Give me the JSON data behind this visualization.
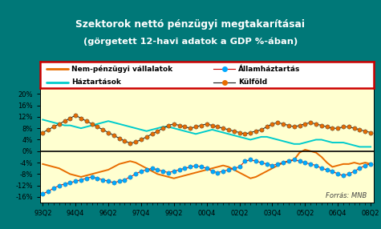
{
  "title_line1": "Szektorok nettó pénzügyi megtakarításai",
  "title_line2": "(görgetett 12-havi adatok a GDP %-ában)",
  "background_outer": "#007878",
  "background_inner": "#ffffd0",
  "legend_labels": [
    "Nem-pénzügyi vállalatok",
    "Államháztartás",
    "Háztartások",
    "Külföld"
  ],
  "yticks": [
    -16,
    -12,
    -8,
    -4,
    0,
    4,
    8,
    12,
    16,
    20
  ],
  "ytick_labels": [
    "-16%",
    "-12%",
    "-8%",
    "-4%",
    "0%",
    "4%",
    "8%",
    "12%",
    "16%",
    "20%"
  ],
  "xtick_labels": [
    "93Q2",
    "94Q4",
    "96Q2",
    "97Q4",
    "99Q2",
    "00Q4",
    "02Q2",
    "03Q4",
    "05Q2",
    "06Q4",
    "08Q2"
  ],
  "forras": "Forrás: MNB",
  "kulfoldi_y": [
    6.5,
    7.5,
    8.5,
    9.5,
    10.5,
    11.5,
    12.5,
    11.5,
    10.5,
    9.5,
    8.5,
    7.5,
    6.5,
    5.5,
    4.5,
    3.5,
    2.8,
    3.2,
    4.0,
    5.0,
    6.0,
    7.0,
    8.0,
    9.0,
    9.5,
    9.0,
    8.5,
    8.0,
    8.5,
    9.0,
    9.5,
    9.0,
    8.5,
    8.0,
    7.5,
    7.0,
    6.5,
    6.0,
    6.5,
    7.0,
    7.5,
    8.5,
    9.5,
    10.0,
    9.5,
    9.0,
    8.5,
    9.0,
    9.5,
    10.0,
    9.5,
    9.0,
    8.5,
    8.0,
    8.0,
    8.5,
    8.5,
    8.0,
    7.5,
    7.0,
    6.5
  ],
  "haztar_y": [
    11.0,
    10.5,
    10.0,
    9.5,
    9.0,
    9.0,
    8.5,
    8.0,
    8.5,
    9.0,
    9.5,
    10.0,
    10.5,
    10.0,
    9.5,
    9.0,
    8.5,
    8.0,
    7.5,
    7.0,
    7.5,
    8.0,
    8.5,
    8.5,
    8.0,
    7.5,
    7.0,
    6.5,
    6.0,
    6.5,
    7.0,
    7.5,
    7.0,
    6.5,
    6.0,
    5.5,
    5.0,
    4.5,
    4.0,
    4.5,
    5.0,
    5.0,
    4.5,
    4.0,
    3.5,
    3.0,
    2.5,
    2.5,
    3.0,
    3.5,
    4.0,
    4.0,
    3.5,
    3.0,
    3.0,
    3.0,
    2.5,
    2.0,
    1.5,
    1.5,
    1.5
  ],
  "vallalat_y": [
    -4.5,
    -5.0,
    -5.5,
    -6.0,
    -7.0,
    -8.0,
    -8.5,
    -9.0,
    -8.5,
    -8.0,
    -7.5,
    -7.0,
    -6.5,
    -5.5,
    -4.5,
    -4.0,
    -3.5,
    -4.0,
    -5.0,
    -6.0,
    -7.0,
    -8.0,
    -8.5,
    -9.0,
    -9.5,
    -9.0,
    -8.5,
    -8.0,
    -7.5,
    -7.0,
    -6.5,
    -6.0,
    -5.5,
    -5.0,
    -5.5,
    -6.5,
    -7.5,
    -8.5,
    -9.5,
    -9.0,
    -8.0,
    -7.0,
    -6.0,
    -5.0,
    -4.0,
    -3.5,
    -3.0,
    -0.5,
    0.5,
    0.0,
    -0.5,
    -2.0,
    -4.0,
    -5.5,
    -5.0,
    -4.5,
    -4.5,
    -4.0,
    -4.5,
    -4.0,
    -4.5
  ],
  "allam_y": [
    -15.0,
    -14.0,
    -13.0,
    -12.0,
    -11.5,
    -11.0,
    -10.5,
    -10.0,
    -9.5,
    -9.0,
    -9.5,
    -10.0,
    -10.5,
    -11.0,
    -10.5,
    -10.0,
    -9.0,
    -8.0,
    -7.0,
    -6.5,
    -6.0,
    -6.5,
    -7.0,
    -7.5,
    -7.0,
    -6.5,
    -6.0,
    -5.5,
    -5.0,
    -5.5,
    -6.0,
    -7.0,
    -7.5,
    -7.0,
    -6.5,
    -6.0,
    -5.5,
    -3.5,
    -3.0,
    -3.5,
    -4.0,
    -4.5,
    -5.0,
    -4.5,
    -4.0,
    -3.5,
    -3.0,
    -3.5,
    -4.0,
    -4.5,
    -5.0,
    -6.0,
    -6.5,
    -7.0,
    -8.0,
    -8.5,
    -8.0,
    -7.0,
    -6.0,
    -5.0,
    -4.5
  ]
}
